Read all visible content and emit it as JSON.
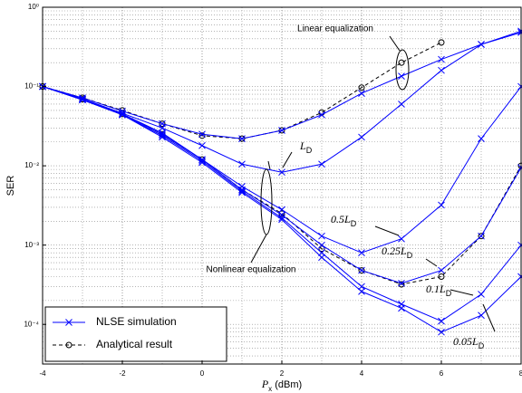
{
  "chart_data": {
    "type": "line",
    "log_y": true,
    "grid": true,
    "minor_grid": true,
    "legend": "lower left",
    "ylabel": "SER",
    "xlabel": {
      "main": "P",
      "sub": "x",
      "rest": " (dBm)"
    },
    "x": [
      -4,
      -3,
      -2,
      -1,
      0,
      1,
      2,
      3,
      4,
      5,
      6,
      7,
      8
    ],
    "xlim": [
      -4,
      8
    ],
    "xticks": [
      -4,
      -2,
      0,
      2,
      4,
      6,
      8
    ],
    "ylim": [
      3.1623e-05,
      1
    ],
    "yticks": [
      {
        "value": 1,
        "label": "10⁰"
      },
      {
        "value": 0.1,
        "label": "10⁻¹"
      },
      {
        "value": 0.01,
        "label": "10⁻²"
      },
      {
        "value": 0.001,
        "label": "10⁻³"
      },
      {
        "value": 0.0001,
        "label": "10⁻⁴"
      }
    ],
    "simulation": {
      "name": "NLSE simulation",
      "color": "#0000ff",
      "marker": "x",
      "dashed": false,
      "curves": [
        [
          0.1,
          0.072,
          0.049,
          0.034,
          0.025,
          0.022,
          0.028,
          0.044,
          0.082,
          0.135,
          0.22,
          0.34,
          0.48
        ],
        [
          0.1,
          0.07,
          0.046,
          0.03,
          0.018,
          0.0105,
          0.0083,
          0.0105,
          0.023,
          0.06,
          0.16,
          0.34,
          0.5
        ],
        [
          0.1,
          0.069,
          0.045,
          0.026,
          0.012,
          0.0055,
          0.0028,
          0.0013,
          0.0008,
          0.0012,
          0.0032,
          0.022,
          0.1
        ],
        [
          0.1,
          0.069,
          0.045,
          0.025,
          0.012,
          0.005,
          0.0024,
          0.001,
          0.00048,
          0.00033,
          0.00048,
          0.0013,
          0.0095
        ],
        [
          0.1,
          0.068,
          0.044,
          0.024,
          0.0115,
          0.0048,
          0.0022,
          0.0008,
          0.0003,
          0.00018,
          0.00011,
          0.00024,
          0.001
        ],
        [
          0.1,
          0.068,
          0.044,
          0.023,
          0.011,
          0.0046,
          0.0021,
          0.0007,
          0.00026,
          0.00016,
          8e-05,
          0.00013,
          0.0004
        ]
      ]
    },
    "analytical": {
      "name": "Analytical result",
      "color": "#000000",
      "marker": "o",
      "dashed": true,
      "curves": [
        [
          0.1,
          0.072,
          0.05,
          0.034,
          0.024,
          0.022,
          0.028,
          0.047,
          0.097,
          0.2,
          0.36,
          null,
          null
        ],
        [
          0.1,
          0.069,
          0.045,
          0.025,
          0.012,
          0.005,
          0.0025,
          0.0009,
          0.00048,
          0.00032,
          0.0004,
          0.0013,
          0.01
        ]
      ]
    },
    "annotations": {
      "linear": "Linear equalization",
      "nonlinear": "Nonlinear equalization"
    },
    "curve_labels": [
      {
        "text": "L",
        "sub": "D"
      },
      {
        "text": "0.5L",
        "sub": "D"
      },
      {
        "text": "0.25L",
        "sub": "D"
      },
      {
        "text": "0.1L",
        "sub": "D"
      },
      {
        "text": "0.05L",
        "sub": "D"
      }
    ]
  }
}
